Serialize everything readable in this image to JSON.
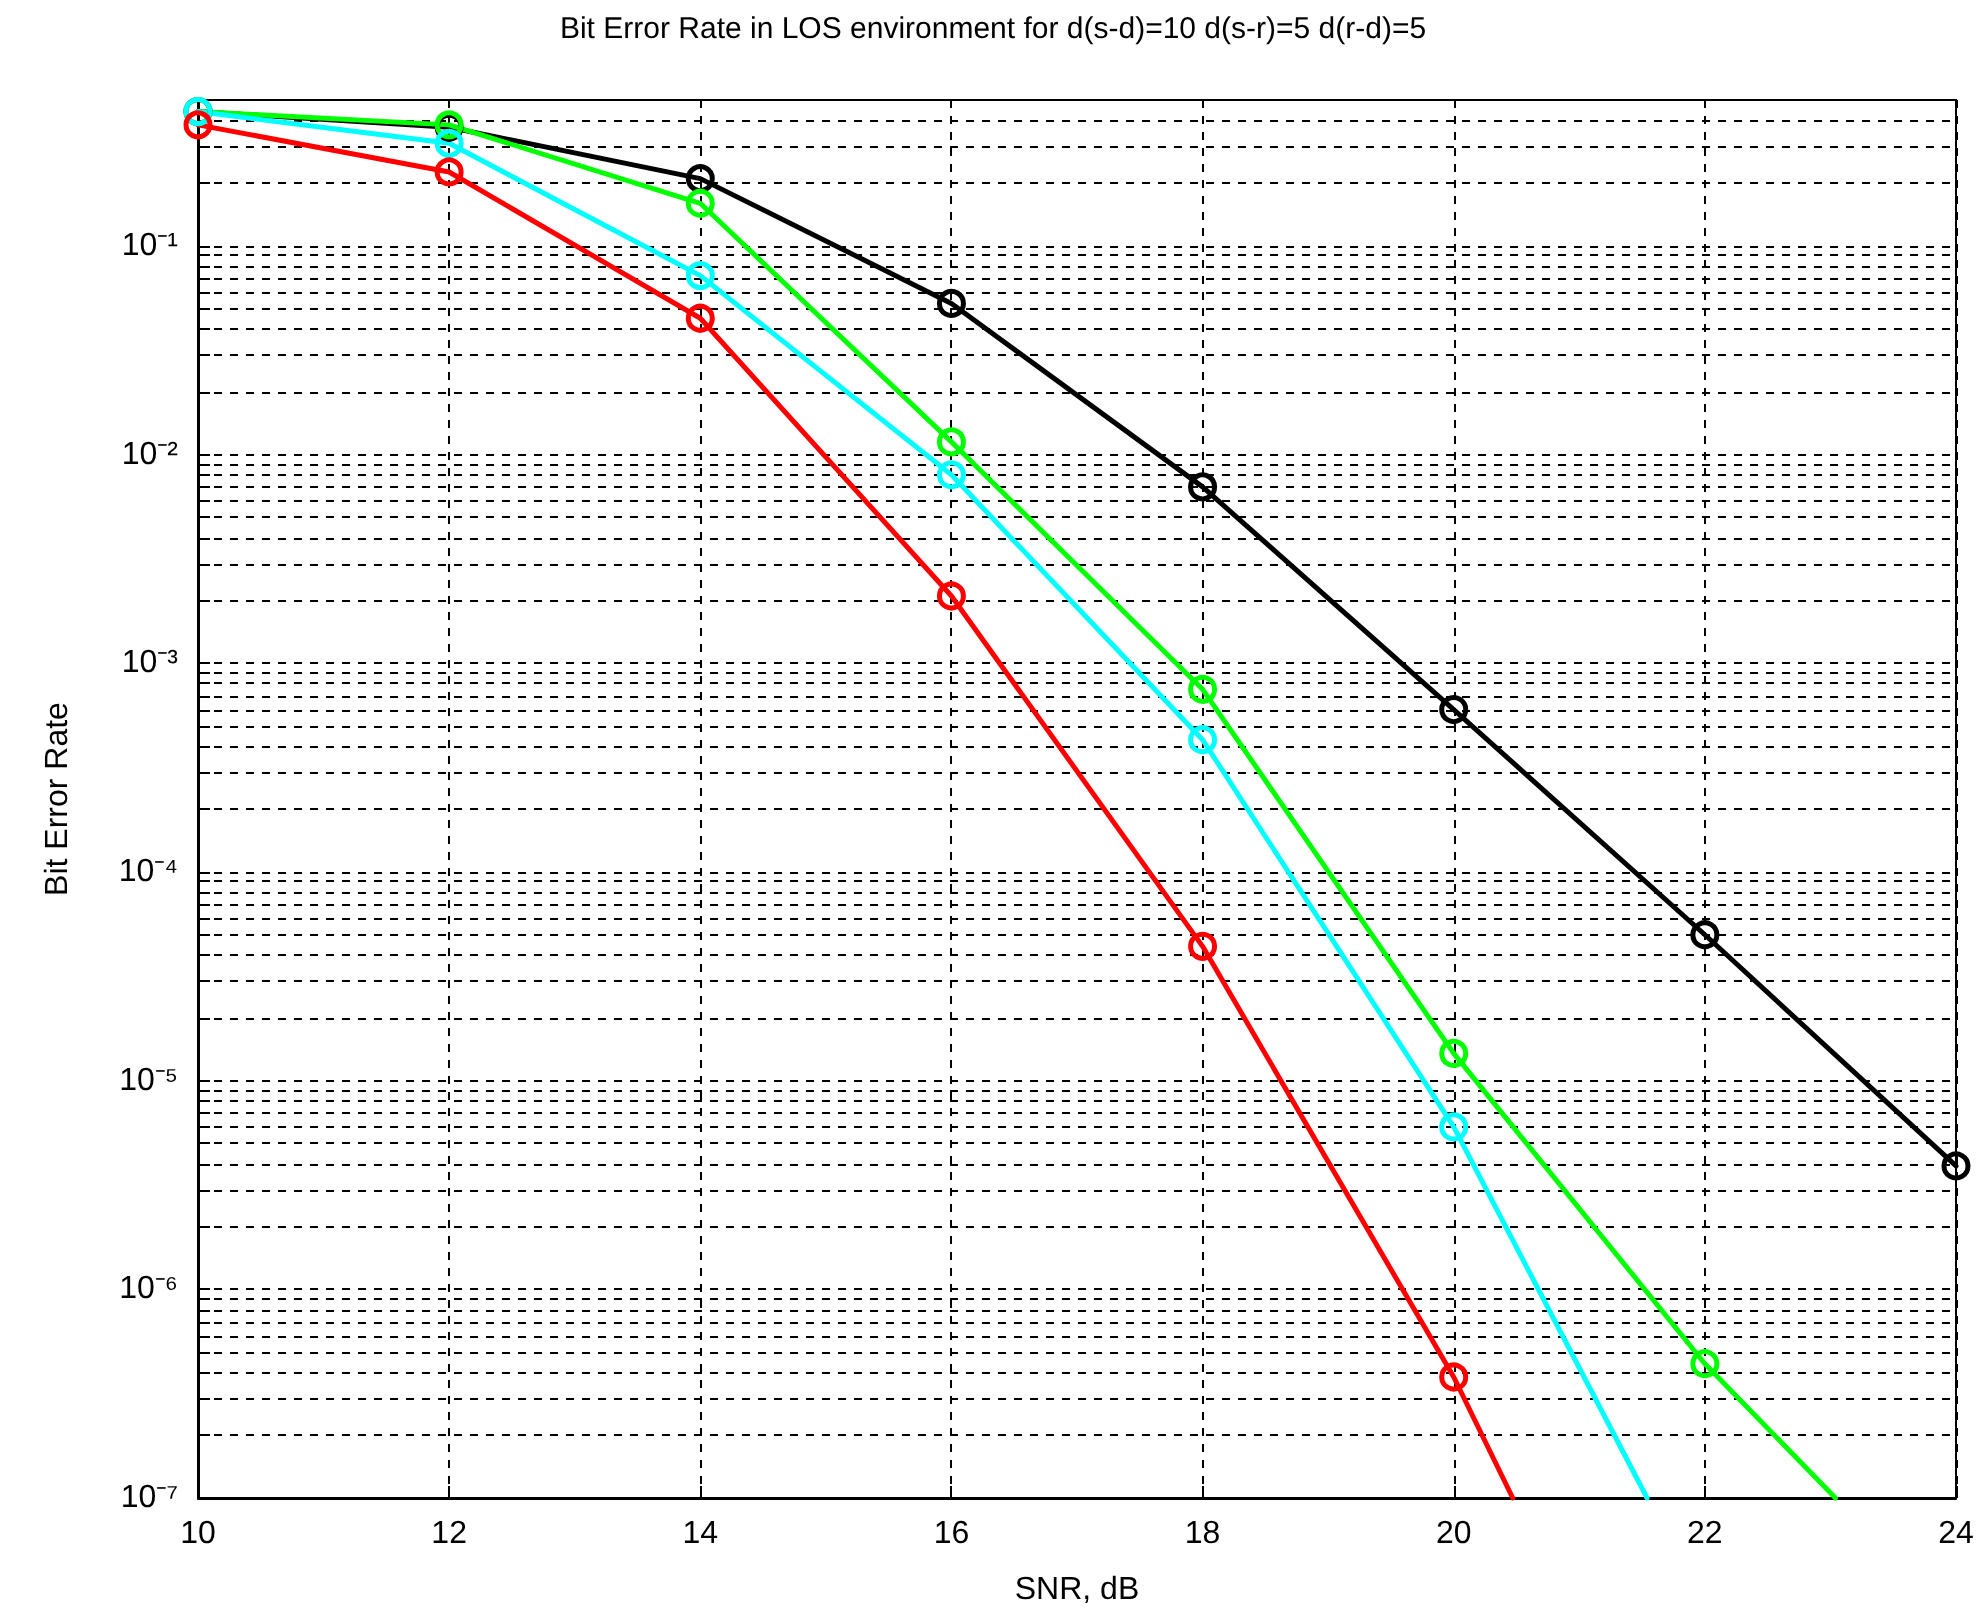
{
  "chart_data": {
    "type": "line",
    "title": "Bit Error Rate in LOS environment for d(s-d)=10 d(s-r)=5 d(r-d)=5",
    "xlabel": "SNR, dB",
    "ylabel": "Bit Error Rate",
    "log": "y",
    "grid": true,
    "marker": "circle",
    "line_style": "solid",
    "xlim": [
      10,
      24
    ],
    "xticks": [
      10,
      12,
      14,
      16,
      18,
      20,
      22,
      24
    ],
    "ylim": [
      1e-07,
      0.5
    ],
    "yticks": [
      {
        "value": 1e-07,
        "label": "10⁻⁷"
      },
      {
        "value": 2e-07,
        "label": null
      },
      {
        "value": 3e-07,
        "label": null
      },
      {
        "value": 4e-07,
        "label": null
      },
      {
        "value": 5e-07,
        "label": null
      },
      {
        "value": 6e-07,
        "label": null
      },
      {
        "value": 7e-07,
        "label": null
      },
      {
        "value": 8e-07,
        "label": null
      },
      {
        "value": 9e-07,
        "label": null
      },
      {
        "value": 1e-06,
        "label": "10⁻⁶"
      },
      {
        "value": 2e-06,
        "label": null
      },
      {
        "value": 3e-06,
        "label": null
      },
      {
        "value": 4e-06,
        "label": null
      },
      {
        "value": 5e-06,
        "label": null
      },
      {
        "value": 6e-06,
        "label": null
      },
      {
        "value": 7e-06,
        "label": null
      },
      {
        "value": 8e-06,
        "label": null
      },
      {
        "value": 9e-06,
        "label": null
      },
      {
        "value": 1e-05,
        "label": "10⁻⁵"
      },
      {
        "value": 2e-05,
        "label": null
      },
      {
        "value": 3e-05,
        "label": null
      },
      {
        "value": 4e-05,
        "label": null
      },
      {
        "value": 5e-05,
        "label": null
      },
      {
        "value": 6e-05,
        "label": null
      },
      {
        "value": 7e-05,
        "label": null
      },
      {
        "value": 8e-05,
        "label": null
      },
      {
        "value": 9e-05,
        "label": null
      },
      {
        "value": 0.0001,
        "label": "10⁻⁴"
      },
      {
        "value": 0.0002,
        "label": null
      },
      {
        "value": 0.0003,
        "label": null
      },
      {
        "value": 0.0004,
        "label": null
      },
      {
        "value": 0.0005,
        "label": null
      },
      {
        "value": 0.0006,
        "label": null
      },
      {
        "value": 0.0007,
        "label": null
      },
      {
        "value": 0.0008,
        "label": null
      },
      {
        "value": 0.0009,
        "label": null
      },
      {
        "value": 0.001,
        "label": "10⁻³"
      },
      {
        "value": 0.002,
        "label": null
      },
      {
        "value": 0.003,
        "label": null
      },
      {
        "value": 0.004,
        "label": null
      },
      {
        "value": 0.005,
        "label": null
      },
      {
        "value": 0.006,
        "label": null
      },
      {
        "value": 0.007,
        "label": null
      },
      {
        "value": 0.008,
        "label": null
      },
      {
        "value": 0.009,
        "label": null
      },
      {
        "value": 0.01,
        "label": "10⁻²"
      },
      {
        "value": 0.02,
        "label": null
      },
      {
        "value": 0.03,
        "label": null
      },
      {
        "value": 0.04,
        "label": null
      },
      {
        "value": 0.05,
        "label": null
      },
      {
        "value": 0.06,
        "label": null
      },
      {
        "value": 0.07,
        "label": null
      },
      {
        "value": 0.08,
        "label": null
      },
      {
        "value": 0.09,
        "label": null
      },
      {
        "value": 0.1,
        "label": "10⁻¹"
      },
      {
        "value": 0.2,
        "label": null
      },
      {
        "value": 0.3,
        "label": null
      },
      {
        "value": 0.4,
        "label": null
      }
    ],
    "series": [
      {
        "color": "#000000",
        "x": [
          10,
          12,
          14,
          16,
          18,
          20,
          22,
          24
        ],
        "values": [
          0.44,
          0.37,
          0.21,
          0.053,
          0.007,
          0.0006,
          5e-05,
          3.9e-06
        ]
      },
      {
        "color": "#00ff00",
        "x": [
          10,
          12,
          14,
          16,
          18,
          20,
          22,
          23.04
        ],
        "values": [
          0.44,
          0.38,
          0.16,
          0.0115,
          0.00075,
          1.35e-05,
          4.4e-07,
          1e-07
        ]
      },
      {
        "color": "#00ffff",
        "x": [
          10,
          12,
          14,
          16,
          18,
          20,
          21.54
        ],
        "values": [
          0.44,
          0.31,
          0.072,
          0.008,
          0.00043,
          6e-06,
          1e-07
        ]
      },
      {
        "color": "#ff0000",
        "x": [
          10,
          12,
          14,
          16,
          18,
          20,
          20.47
        ],
        "values": [
          0.38,
          0.226,
          0.045,
          0.0021,
          4.4e-05,
          3.8e-07,
          1e-07
        ]
      }
    ]
  }
}
